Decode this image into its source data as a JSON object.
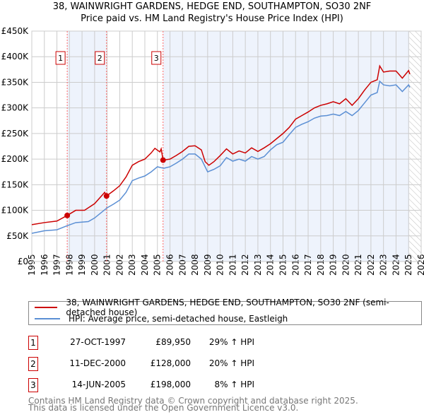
{
  "chart_data": {
    "type": "line",
    "title": "38, WAINWRIGHT GARDENS, HEDGE END, SOUTHAMPTON, SO30 2NF",
    "subtitle": "Price paid vs. HM Land Registry's House Price Index (HPI)",
    "xlim": [
      1995,
      2026
    ],
    "ylim": [
      0,
      450000
    ],
    "x_ticks": [
      "1995",
      "1996",
      "1997",
      "1998",
      "1999",
      "2000",
      "2001",
      "2002",
      "2003",
      "2004",
      "2005",
      "2006",
      "2007",
      "2008",
      "2009",
      "2010",
      "2011",
      "2012",
      "2013",
      "2014",
      "2015",
      "2016",
      "2017",
      "2018",
      "2019",
      "2020",
      "2021",
      "2022",
      "2023",
      "2024",
      "2025",
      "2026"
    ],
    "y_ticks": [
      {
        "v": 0,
        "label": "£0"
      },
      {
        "v": 50000,
        "label": "£50K"
      },
      {
        "v": 100000,
        "label": "£100K"
      },
      {
        "v": 150000,
        "label": "£150K"
      },
      {
        "v": 200000,
        "label": "£200K"
      },
      {
        "v": 250000,
        "label": "£250K"
      },
      {
        "v": 300000,
        "label": "£300K"
      },
      {
        "v": 350000,
        "label": "£350K"
      },
      {
        "v": 400000,
        "label": "£400K"
      },
      {
        "v": 450000,
        "label": "£450K"
      }
    ],
    "grid": true,
    "series": [
      {
        "name": "38, WAINWRIGHT GARDENS, HEDGE END, SOUTHAMPTON, SO30 2NF (semi-detached house)",
        "color": "#cc0000",
        "points": [
          [
            1995,
            72
          ],
          [
            1996,
            76
          ],
          [
            1997,
            79
          ],
          [
            1997.82,
            90
          ],
          [
            1998.5,
            100
          ],
          [
            1999.2,
            100
          ],
          [
            2000,
            113
          ],
          [
            2000.8,
            135
          ],
          [
            2000.95,
            128
          ],
          [
            2001.5,
            138
          ],
          [
            2002,
            148
          ],
          [
            2002.5,
            165
          ],
          [
            2003,
            188
          ],
          [
            2003.5,
            195
          ],
          [
            2004,
            200
          ],
          [
            2004.5,
            212
          ],
          [
            2004.8,
            221
          ],
          [
            2005.2,
            214
          ],
          [
            2005.3,
            220
          ],
          [
            2005.45,
            198
          ],
          [
            2006,
            200
          ],
          [
            2006.5,
            207
          ],
          [
            2007,
            215
          ],
          [
            2007.5,
            225
          ],
          [
            2008,
            226
          ],
          [
            2008.5,
            218
          ],
          [
            2008.8,
            195
          ],
          [
            2009.1,
            188
          ],
          [
            2009.5,
            195
          ],
          [
            2010,
            207
          ],
          [
            2010.5,
            220
          ],
          [
            2011,
            210
          ],
          [
            2011.5,
            216
          ],
          [
            2012,
            212
          ],
          [
            2012.5,
            222
          ],
          [
            2013,
            215
          ],
          [
            2013.5,
            222
          ],
          [
            2014,
            230
          ],
          [
            2014.5,
            240
          ],
          [
            2015,
            250
          ],
          [
            2015.5,
            262
          ],
          [
            2016,
            278
          ],
          [
            2016.5,
            285
          ],
          [
            2017,
            292
          ],
          [
            2017.5,
            300
          ],
          [
            2018,
            305
          ],
          [
            2018.5,
            308
          ],
          [
            2019,
            312
          ],
          [
            2019.5,
            308
          ],
          [
            2020,
            318
          ],
          [
            2020.5,
            305
          ],
          [
            2021,
            318
          ],
          [
            2021.5,
            335
          ],
          [
            2022,
            350
          ],
          [
            2022.5,
            355
          ],
          [
            2022.7,
            382
          ],
          [
            2023,
            370
          ],
          [
            2023.5,
            372
          ],
          [
            2024,
            372
          ],
          [
            2024.5,
            358
          ],
          [
            2025,
            373
          ],
          [
            2025.1,
            366
          ]
        ]
      },
      {
        "name": "HPI: Average price, semi-detached house, Eastleigh",
        "color": "#5b8fd4",
        "points": [
          [
            1995,
            55
          ],
          [
            1996,
            60
          ],
          [
            1997,
            62
          ],
          [
            1997.82,
            70
          ],
          [
            1998.5,
            76
          ],
          [
            1999.5,
            78
          ],
          [
            2000,
            85
          ],
          [
            2001,
            105
          ],
          [
            2001.5,
            112
          ],
          [
            2002,
            120
          ],
          [
            2002.5,
            135
          ],
          [
            2003,
            158
          ],
          [
            2003.5,
            163
          ],
          [
            2004,
            167
          ],
          [
            2004.5,
            175
          ],
          [
            2005,
            185
          ],
          [
            2005.5,
            182
          ],
          [
            2006,
            185
          ],
          [
            2006.5,
            192
          ],
          [
            2007,
            200
          ],
          [
            2007.5,
            210
          ],
          [
            2008,
            210
          ],
          [
            2008.5,
            200
          ],
          [
            2009,
            175
          ],
          [
            2009.5,
            180
          ],
          [
            2010,
            187
          ],
          [
            2010.5,
            203
          ],
          [
            2011,
            196
          ],
          [
            2011.5,
            200
          ],
          [
            2012,
            196
          ],
          [
            2012.5,
            205
          ],
          [
            2013,
            200
          ],
          [
            2013.5,
            205
          ],
          [
            2014,
            218
          ],
          [
            2014.5,
            228
          ],
          [
            2015,
            233
          ],
          [
            2015.5,
            248
          ],
          [
            2016,
            262
          ],
          [
            2016.5,
            268
          ],
          [
            2017,
            273
          ],
          [
            2017.5,
            280
          ],
          [
            2018,
            284
          ],
          [
            2018.5,
            285
          ],
          [
            2019,
            288
          ],
          [
            2019.5,
            285
          ],
          [
            2020,
            293
          ],
          [
            2020.5,
            285
          ],
          [
            2021,
            295
          ],
          [
            2021.5,
            310
          ],
          [
            2022,
            325
          ],
          [
            2022.5,
            330
          ],
          [
            2022.7,
            352
          ],
          [
            2023,
            345
          ],
          [
            2023.5,
            343
          ],
          [
            2024,
            345
          ],
          [
            2024.5,
            332
          ],
          [
            2025,
            345
          ],
          [
            2025.1,
            340
          ]
        ]
      }
    ],
    "sales": [
      {
        "label": "1",
        "x": 1997.82,
        "y": 89950
      },
      {
        "label": "2",
        "x": 2000.95,
        "y": 128000
      },
      {
        "label": "3",
        "x": 2005.45,
        "y": 198000
      }
    ]
  },
  "legend": {
    "property": "38, WAINWRIGHT GARDENS, HEDGE END, SOUTHAMPTON, SO30 2NF (semi-detached house)",
    "hpi": "HPI: Average price, semi-detached house, Eastleigh"
  },
  "transactions": [
    {
      "num": "1",
      "date": "27-OCT-1997",
      "price": "£89,950",
      "hpi": "29% ↑ HPI"
    },
    {
      "num": "2",
      "date": "11-DEC-2000",
      "price": "£128,000",
      "hpi": "20% ↑ HPI"
    },
    {
      "num": "3",
      "date": "14-JUN-2005",
      "price": "£198,000",
      "hpi": "8% ↑ HPI"
    }
  ],
  "footer": {
    "line1": "Contains HM Land Registry data © Crown copyright and database right 2025.",
    "line2": "This data is licensed under the Open Government Licence v3.0."
  }
}
